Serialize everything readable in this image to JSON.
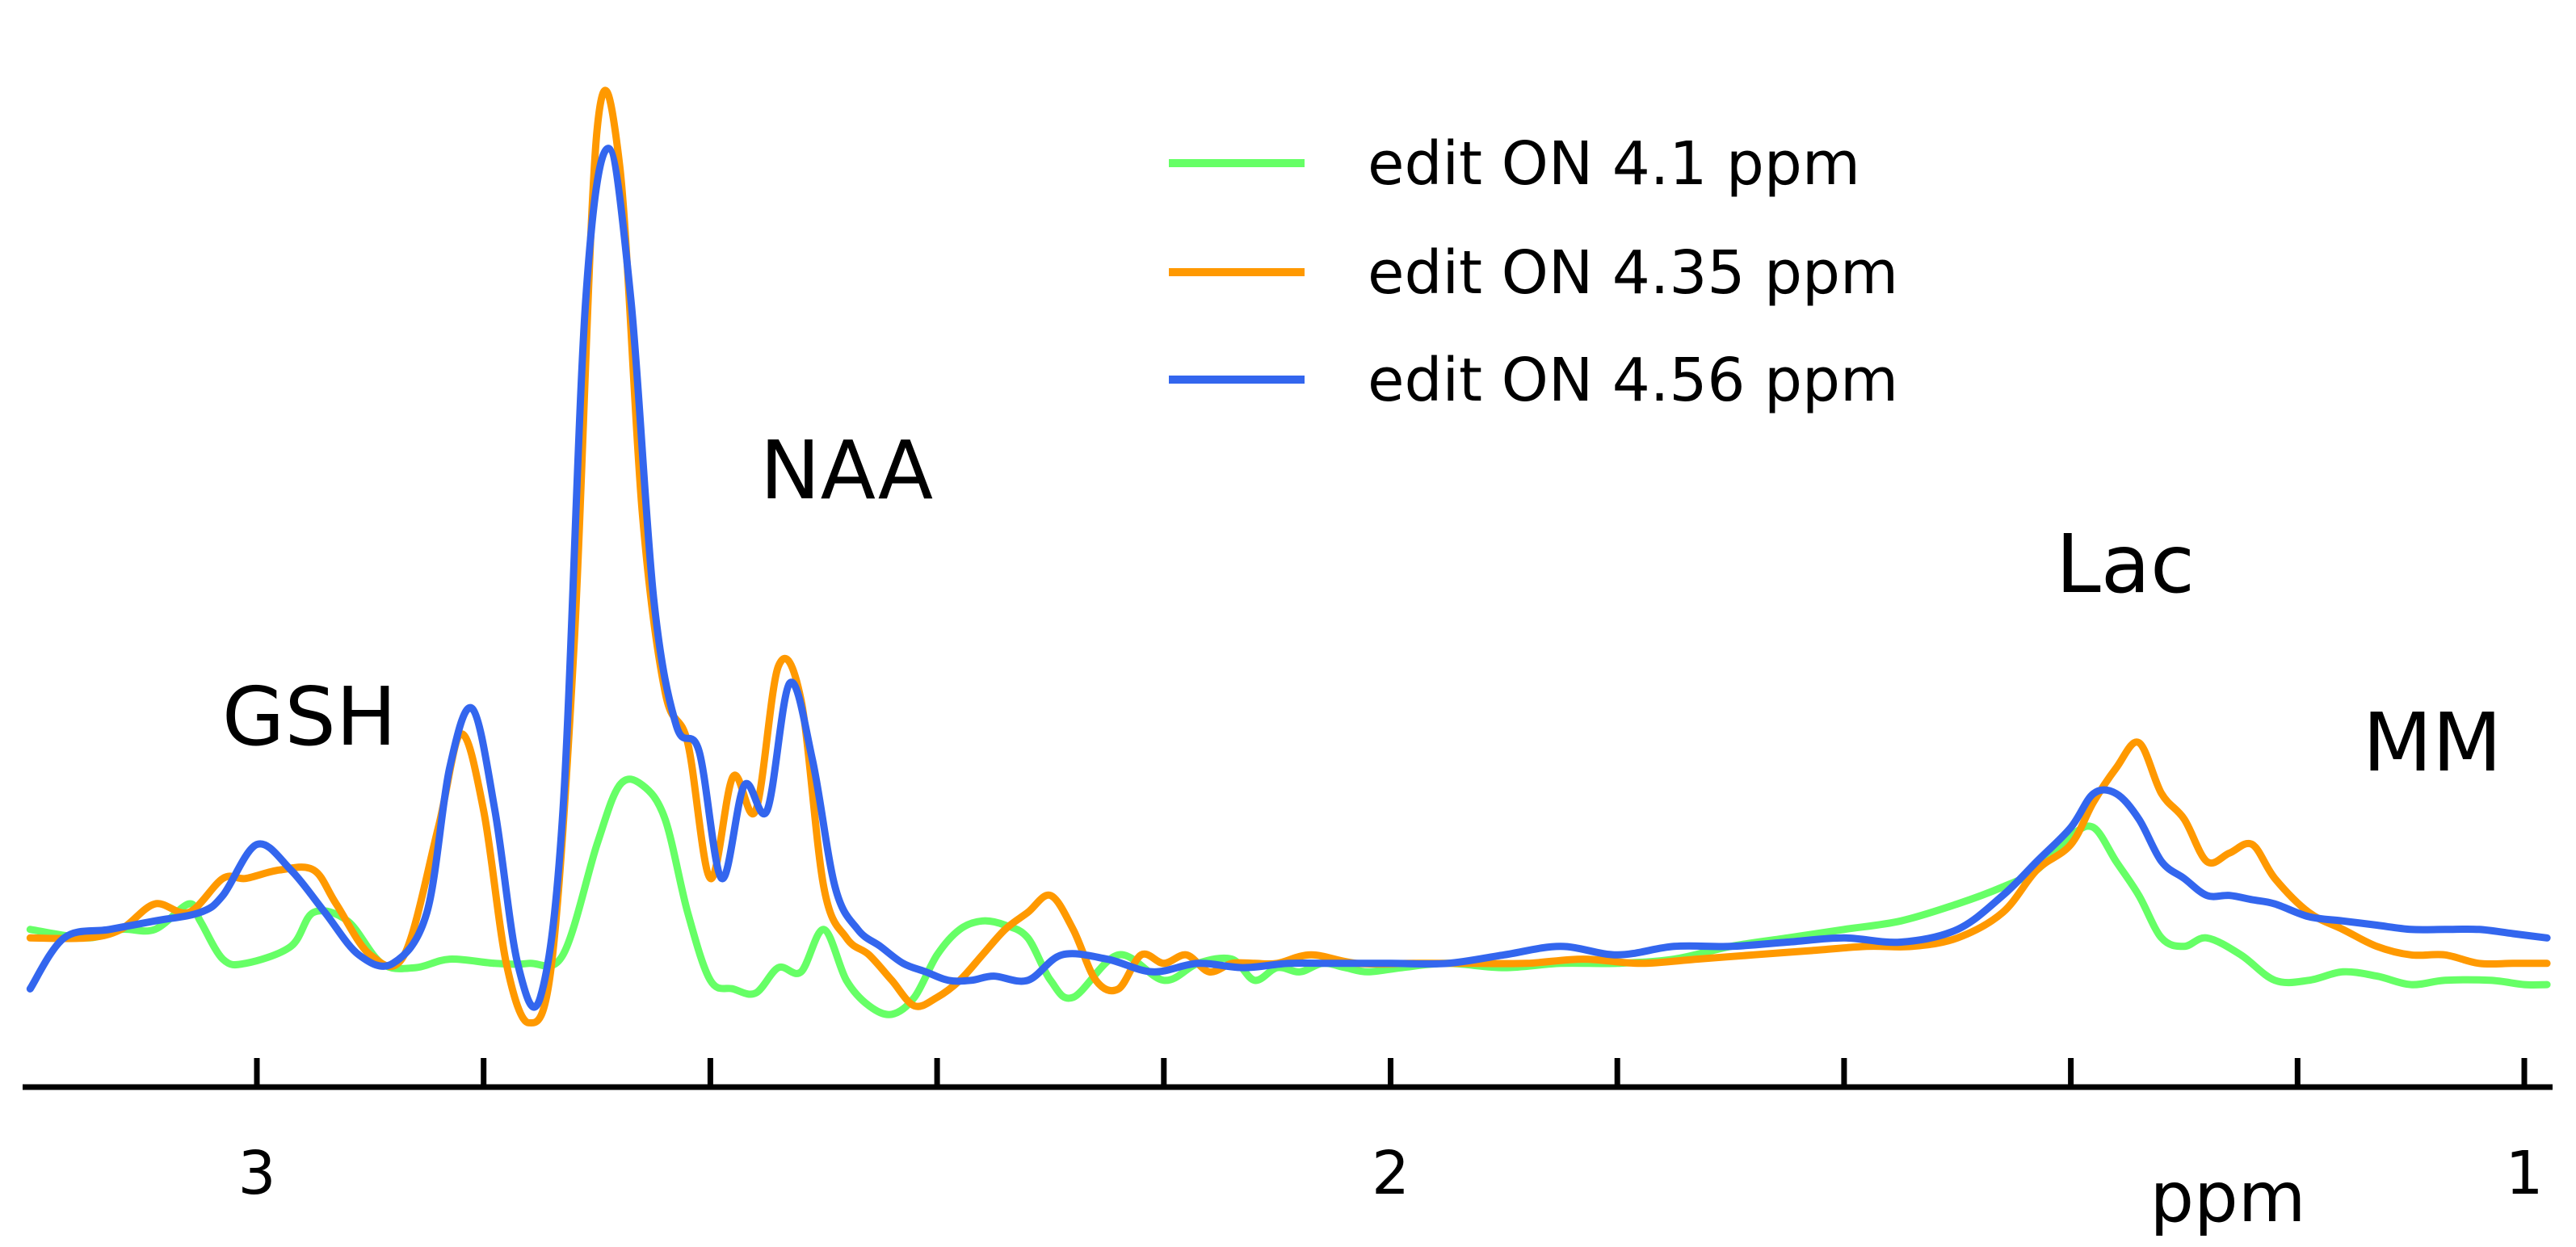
{
  "chart_data": {
    "type": "line",
    "title": "",
    "xlabel": "ppm",
    "ylabel": "",
    "x_direction": "reversed",
    "xlim": [
      3.2,
      0.98
    ],
    "ylim": [
      -0.12,
      1.05
    ],
    "ticks": [
      3.0,
      2.8,
      2.6,
      2.4,
      2.2,
      2.0,
      1.8,
      1.6,
      1.4,
      1.2,
      1.0
    ],
    "tick_labels": [
      {
        "x": 3.0,
        "label": "3"
      },
      {
        "x": 2.0,
        "label": "2"
      },
      {
        "x": 1.0,
        "label": "1"
      }
    ],
    "grid": false,
    "legend_placement": "top-center",
    "annotations": [
      {
        "text": "GSH",
        "x": 2.95,
        "y": 0.23
      },
      {
        "text": "NAA",
        "x": 2.02,
        "y": 0.5
      },
      {
        "text": "Lac",
        "x": 1.33,
        "y": 0.4
      },
      {
        "text": "MM",
        "x": 1.11,
        "y": 0.23
      }
    ],
    "series": [
      {
        "name": "edit ON 4.1 ppm",
        "color": "#66ff66",
        "x": [
          3.2,
          3.15,
          3.12,
          3.09,
          3.06,
          3.05,
          3.03,
          3.01,
          2.97,
          2.95,
          2.92,
          2.89,
          2.86,
          2.83,
          2.79,
          2.76,
          2.73,
          2.7,
          2.68,
          2.66,
          2.64,
          2.62,
          2.6,
          2.58,
          2.56,
          2.54,
          2.52,
          2.5,
          2.48,
          2.46,
          2.44,
          2.42,
          2.4,
          2.38,
          2.36,
          2.34,
          2.32,
          2.3,
          2.28,
          2.24,
          2.2,
          2.17,
          2.14,
          2.12,
          2.1,
          2.08,
          2.06,
          2.04,
          2.02,
          1.99,
          1.95,
          1.9,
          1.85,
          1.8,
          1.75,
          1.7,
          1.65,
          1.6,
          1.55,
          1.5,
          1.46,
          1.43,
          1.4,
          1.38,
          1.36,
          1.34,
          1.32,
          1.3,
          1.28,
          1.25,
          1.22,
          1.19,
          1.16,
          1.13,
          1.1,
          1.07,
          1.03,
          1.0,
          0.98
        ],
        "y": [
          0.06,
          0.05,
          0.06,
          0.06,
          0.09,
          0.07,
          0.025,
          0.02,
          0.04,
          0.08,
          0.07,
          0.02,
          0.015,
          0.025,
          0.02,
          0.02,
          0.03,
          0.16,
          0.23,
          0.23,
          0.19,
          0.08,
          0.0,
          -0.01,
          -0.015,
          0.015,
          0.01,
          0.06,
          0.0,
          -0.03,
          -0.04,
          -0.02,
          0.03,
          0.06,
          0.07,
          0.065,
          0.05,
          0.0,
          -0.02,
          0.03,
          0.0,
          0.02,
          0.025,
          0.0,
          0.015,
          0.01,
          0.02,
          0.015,
          0.01,
          0.015,
          0.02,
          0.015,
          0.02,
          0.02,
          0.025,
          0.04,
          0.05,
          0.06,
          0.07,
          0.09,
          0.11,
          0.13,
          0.17,
          0.18,
          0.14,
          0.1,
          0.05,
          0.04,
          0.05,
          0.03,
          0.0,
          0.0,
          0.01,
          0.005,
          -0.005,
          0.0,
          0.0,
          -0.005,
          -0.005
        ]
      },
      {
        "name": "edit ON 4.35 ppm",
        "color": "#ff9900",
        "x": [
          3.2,
          3.15,
          3.12,
          3.09,
          3.06,
          3.03,
          3.01,
          2.98,
          2.95,
          2.93,
          2.9,
          2.87,
          2.84,
          2.82,
          2.8,
          2.78,
          2.76,
          2.74,
          2.72,
          2.7,
          2.68,
          2.66,
          2.64,
          2.62,
          2.6,
          2.58,
          2.56,
          2.54,
          2.52,
          2.5,
          2.48,
          2.46,
          2.44,
          2.42,
          2.4,
          2.38,
          2.36,
          2.34,
          2.32,
          2.3,
          2.28,
          2.26,
          2.24,
          2.22,
          2.2,
          2.18,
          2.16,
          2.14,
          2.12,
          2.1,
          2.07,
          2.03,
          1.98,
          1.93,
          1.88,
          1.83,
          1.78,
          1.73,
          1.68,
          1.63,
          1.58,
          1.54,
          1.5,
          1.46,
          1.43,
          1.4,
          1.38,
          1.36,
          1.34,
          1.32,
          1.3,
          1.28,
          1.26,
          1.24,
          1.22,
          1.19,
          1.16,
          1.13,
          1.1,
          1.07,
          1.04,
          1.01,
          0.98
        ],
        "y": [
          0.05,
          0.05,
          0.06,
          0.09,
          0.08,
          0.12,
          0.12,
          0.13,
          0.13,
          0.09,
          0.03,
          0.03,
          0.18,
          0.29,
          0.2,
          0.02,
          -0.05,
          0.02,
          0.4,
          1.0,
          0.96,
          0.55,
          0.34,
          0.28,
          0.12,
          0.24,
          0.2,
          0.37,
          0.33,
          0.11,
          0.05,
          0.03,
          0.0,
          -0.03,
          -0.02,
          0.0,
          0.03,
          0.06,
          0.08,
          0.1,
          0.06,
          0.0,
          -0.01,
          0.03,
          0.02,
          0.03,
          0.01,
          0.02,
          0.02,
          0.02,
          0.03,
          0.02,
          0.02,
          0.02,
          0.02,
          0.025,
          0.02,
          0.025,
          0.03,
          0.035,
          0.04,
          0.04,
          0.05,
          0.08,
          0.13,
          0.16,
          0.21,
          0.25,
          0.28,
          0.22,
          0.19,
          0.14,
          0.15,
          0.16,
          0.12,
          0.08,
          0.06,
          0.04,
          0.03,
          0.03,
          0.02,
          0.02,
          0.02
        ]
      },
      {
        "name": "edit ON 4.56 ppm",
        "color": "#3366ee",
        "x": [
          3.2,
          3.17,
          3.13,
          3.09,
          3.05,
          3.03,
          3.0,
          2.97,
          2.94,
          2.91,
          2.88,
          2.85,
          2.83,
          2.81,
          2.79,
          2.77,
          2.75,
          2.73,
          2.71,
          2.69,
          2.67,
          2.65,
          2.63,
          2.61,
          2.59,
          2.57,
          2.55,
          2.53,
          2.51,
          2.49,
          2.47,
          2.45,
          2.43,
          2.41,
          2.39,
          2.37,
          2.35,
          2.32,
          2.29,
          2.25,
          2.21,
          2.17,
          2.13,
          2.09,
          2.05,
          2.0,
          1.95,
          1.9,
          1.85,
          1.8,
          1.75,
          1.7,
          1.65,
          1.6,
          1.55,
          1.5,
          1.46,
          1.43,
          1.4,
          1.38,
          1.36,
          1.34,
          1.32,
          1.3,
          1.28,
          1.26,
          1.24,
          1.22,
          1.19,
          1.16,
          1.13,
          1.1,
          1.07,
          1.04,
          1.01,
          0.98
        ],
        "y": [
          -0.01,
          0.05,
          0.06,
          0.07,
          0.08,
          0.1,
          0.16,
          0.13,
          0.08,
          0.03,
          0.02,
          0.08,
          0.25,
          0.32,
          0.2,
          0.02,
          -0.02,
          0.2,
          0.8,
          0.98,
          0.8,
          0.45,
          0.3,
          0.27,
          0.12,
          0.23,
          0.2,
          0.35,
          0.26,
          0.11,
          0.06,
          0.04,
          0.02,
          0.01,
          0.0,
          0.0,
          0.005,
          0.0,
          0.03,
          0.025,
          0.01,
          0.02,
          0.015,
          0.02,
          0.02,
          0.02,
          0.02,
          0.03,
          0.04,
          0.03,
          0.04,
          0.04,
          0.045,
          0.05,
          0.045,
          0.06,
          0.1,
          0.14,
          0.18,
          0.22,
          0.22,
          0.19,
          0.14,
          0.12,
          0.1,
          0.1,
          0.095,
          0.09,
          0.075,
          0.07,
          0.065,
          0.06,
          0.06,
          0.06,
          0.055,
          0.05
        ]
      }
    ]
  }
}
